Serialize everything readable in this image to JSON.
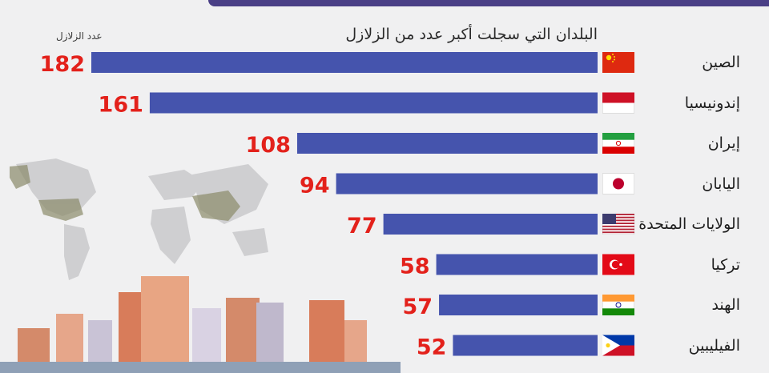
{
  "chart_data": {
    "type": "bar",
    "orientation": "horizontal",
    "title": "البلدان التي سجلت أكبر عدد من الزلازل",
    "value_label": "عدد الزلازل",
    "categories": [
      "الصين",
      "إندونيسيا",
      "إيران",
      "اليابان",
      "الولايات المتحدة",
      "تركيا",
      "الهند",
      "الفيليبين"
    ],
    "values": [
      182,
      161,
      108,
      94,
      77,
      58,
      57,
      52
    ],
    "flags": [
      "china-flag-icon",
      "indonesia-flag-icon",
      "iran-flag-icon",
      "japan-flag-icon",
      "usa-flag-icon",
      "turkey-flag-icon",
      "india-flag-icon",
      "philippines-flag-icon"
    ],
    "xlim": [
      0,
      182
    ],
    "bar_color": "#4554ad",
    "value_color": "#e3211b",
    "grid": false,
    "legend": "none"
  }
}
